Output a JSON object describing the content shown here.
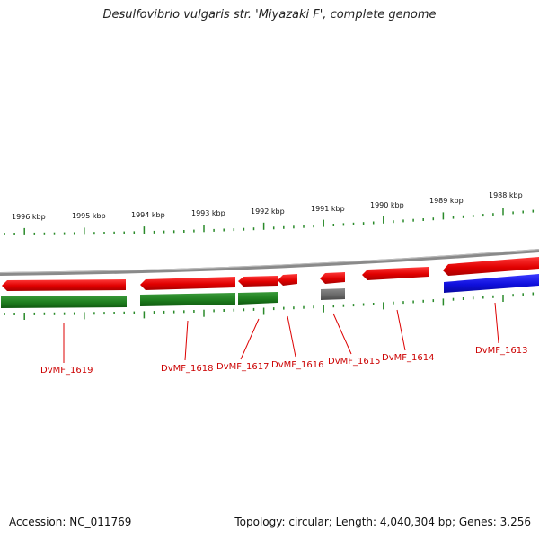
{
  "title": "Desulfovibrio vulgaris str. 'Miyazaki F', complete genome",
  "footer": {
    "accession": "Accession: NC_011769",
    "summary": "Topology: circular; Length: 4,040,304 bp; Genes: 3,256"
  },
  "colors": {
    "forward_gene": "#e00000",
    "cds_feature": "#1e7d1e",
    "rna_feature": "#1010dd",
    "other_feature": "#707070",
    "backbone": "#8a8a8a",
    "ticks": "#2a8a2a",
    "label_line": "#dd0000"
  },
  "kbp_ticks": [
    "1996 kbp",
    "1995 kbp",
    "1994 kbp",
    "1993 kbp",
    "1992 kbp",
    "1991 kbp",
    "1990 kbp",
    "1989 kbp",
    "1988 kbp"
  ],
  "genes": [
    {
      "label": "DvMF_1619"
    },
    {
      "label": "DvMF_1618"
    },
    {
      "label": "DvMF_1617"
    },
    {
      "label": "DvMF_1616"
    },
    {
      "label": "DvMF_1615"
    },
    {
      "label": "DvMF_1614"
    },
    {
      "label": "DvMF_1613"
    }
  ]
}
